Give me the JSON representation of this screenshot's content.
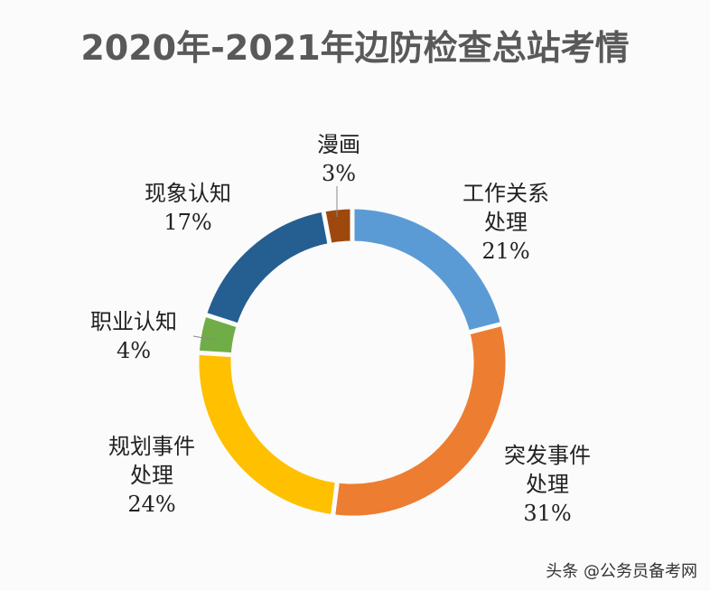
{
  "chart_data": {
    "type": "pie",
    "variant": "donut",
    "title": "2020年-2021年边防检查总站考情",
    "start": "12 o'clock",
    "direction": "clockwise",
    "slices": [
      {
        "label_lines": [
          "工作关系",
          "处理"
        ],
        "pct": "21%",
        "value": 21,
        "color": "#5B9BD5"
      },
      {
        "label_lines": [
          "突发事件",
          "处理"
        ],
        "pct": "31%",
        "value": 31,
        "color": "#ED7D31"
      },
      {
        "label_lines": [
          "规划事件",
          "处理"
        ],
        "pct": "24%",
        "value": 24,
        "color": "#FFC000"
      },
      {
        "label_lines": [
          "职业认知"
        ],
        "pct": "4%",
        "value": 4,
        "color": "#70AD47"
      },
      {
        "label_lines": [
          "现象认知"
        ],
        "pct": "17%",
        "value": 17,
        "color": "#255E91"
      },
      {
        "label_lines": [
          "漫画"
        ],
        "pct": "3%",
        "value": 3,
        "color": "#9E480E"
      }
    ]
  },
  "watermark": "头条 @公务员备考网"
}
